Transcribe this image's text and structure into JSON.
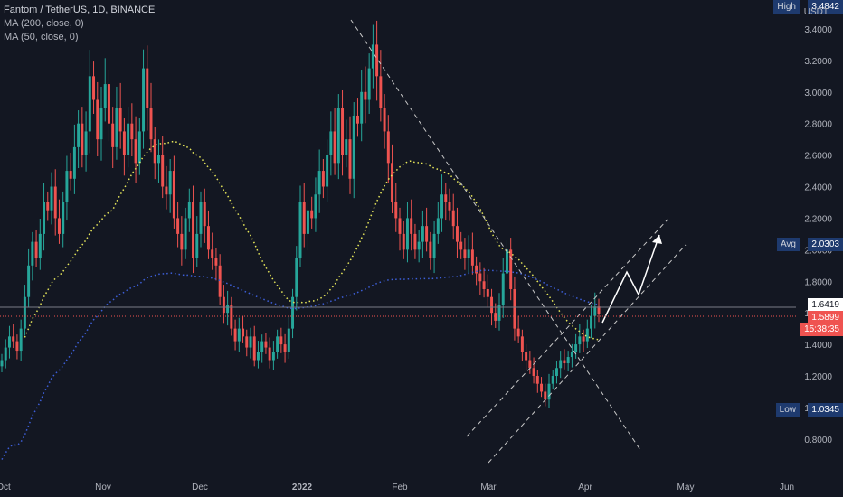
{
  "legend": {
    "title": "Fantom / TetherUS, 1D, BINANCE",
    "ma200": "MA (200, close, 0)",
    "ma50": "MA (50, close, 0)"
  },
  "price_scale": {
    "unit": "USDT",
    "high_label": "High",
    "high_value": "3.4842",
    "avg_label": "Avg",
    "avg_value": "2.0303",
    "low_label": "Low",
    "low_value": "1.0345",
    "last_close": "1.6419",
    "current_price": "1.5899",
    "countdown": "15:38:35"
  },
  "colors": {
    "background": "#131722",
    "up": "#26a69a",
    "down": "#ef5350",
    "ma50": "#e8e85a",
    "ma200": "#3d5fd9",
    "drawing": "#c8c8c8",
    "arrow": "#ffffff",
    "grid": "#1e222d",
    "tag_last": "#131722",
    "tag_current": "#ef5350"
  },
  "chart_data": {
    "type": "candlestick",
    "title": "Fantom / TetherUS, 1D, BINANCE",
    "xlabel": "",
    "ylabel": "",
    "ylim": [
      0.65,
      3.48
    ],
    "yticks": [
      0.8,
      1.0,
      1.2,
      1.4,
      1.6,
      1.8,
      2.0,
      2.2,
      2.4,
      2.6,
      2.8,
      3.0,
      3.2,
      3.4
    ],
    "ytick_labels": [
      "0.8000",
      "1.0000",
      "1.2000",
      "1.4000",
      "1.6000",
      "1.8000",
      "2.0000",
      "2.2000",
      "2.4000",
      "2.6000",
      "2.8000",
      "3.0000",
      "3.2000",
      "3.4000"
    ],
    "xticks": [
      "Oct",
      "Nov",
      "Dec",
      "2022",
      "Feb",
      "Mar",
      "Apr",
      "May",
      "Jun"
    ],
    "grid": false,
    "series": [
      {
        "name": "Fantom / TetherUS",
        "close": [
          1.3,
          1.38,
          1.45,
          1.42,
          1.36,
          1.5,
          1.7,
          1.9,
          2.05,
          1.95,
          2.1,
          2.3,
          2.25,
          2.4,
          2.2,
          2.1,
          2.3,
          2.5,
          2.45,
          2.65,
          2.8,
          2.6,
          2.75,
          3.1,
          2.95,
          2.7,
          2.9,
          3.05,
          2.8,
          2.65,
          2.9,
          2.75,
          2.6,
          2.8,
          2.7,
          2.55,
          2.75,
          3.15,
          2.9,
          2.7,
          2.55,
          2.6,
          2.4,
          2.35,
          2.5,
          2.2,
          2.1,
          2.0,
          2.2,
          2.3,
          1.95,
          2.1,
          2.3,
          2.15,
          2.0,
          1.95,
          1.9,
          1.7,
          1.6,
          1.65,
          1.5,
          1.42,
          1.5,
          1.45,
          1.38,
          1.45,
          1.3,
          1.35,
          1.42,
          1.38,
          1.3,
          1.35,
          1.45,
          1.4,
          1.35,
          1.5,
          1.7,
          1.95,
          2.3,
          2.1,
          2.25,
          2.2,
          2.35,
          2.5,
          2.4,
          2.6,
          2.75,
          2.55,
          2.9,
          2.6,
          2.7,
          2.45,
          2.85,
          2.8,
          3.0,
          2.95,
          3.15,
          3.3,
          3.1,
          2.9,
          2.75,
          2.55,
          2.3,
          2.2,
          2.1,
          2.0,
          2.2,
          2.1,
          2.0,
          2.05,
          2.15,
          2.05,
          1.95,
          2.1,
          2.2,
          2.35,
          2.3,
          2.25,
          2.15,
          2.05,
          2.0,
          1.95,
          2.0,
          1.9,
          1.85,
          1.8,
          1.75,
          1.7,
          1.6,
          1.55,
          1.65,
          1.85,
          2.0,
          1.75,
          1.5,
          1.45,
          1.35,
          1.3,
          1.25,
          1.2,
          1.15,
          1.1,
          1.05,
          1.15,
          1.2,
          1.25,
          1.3,
          1.28,
          1.32,
          1.35,
          1.4,
          1.45,
          1.42,
          1.5,
          1.58,
          1.64,
          1.59
        ]
      },
      {
        "name": "MA (50, close, 0)",
        "values": []
      },
      {
        "name": "MA (200, close, 0)",
        "values": []
      }
    ],
    "annotations": [
      "descending trendline",
      "ascending channel",
      "projected zig-zag arrow"
    ]
  }
}
